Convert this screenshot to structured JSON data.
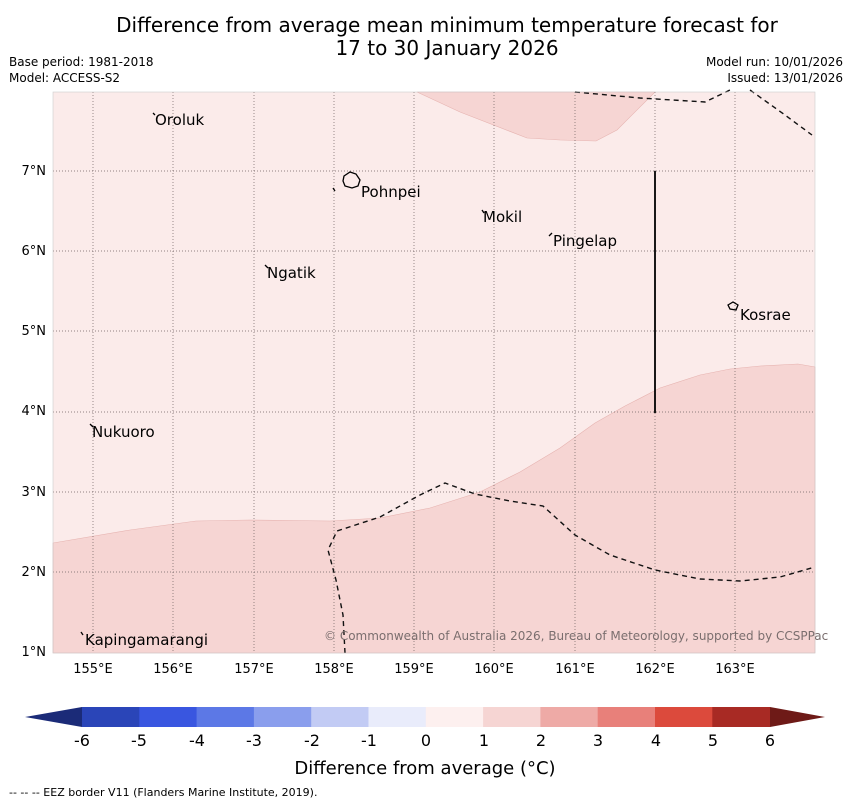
{
  "title": "Difference from average mean minimum temperature forecast for\n17 to 30 January 2026",
  "base_period": "Base period: 1981-2018",
  "model": "Model: ACCESS-S2",
  "model_run": "Model run: 10/01/2026",
  "issued": "Issued: 13/01/2026",
  "lat_ticks": [
    "7°N",
    "6°N",
    "5°N",
    "4°N",
    "3°N",
    "2°N",
    "1°N"
  ],
  "lon_ticks": [
    "155°E",
    "156°E",
    "157°E",
    "158°E",
    "159°E",
    "160°E",
    "161°E",
    "162°E",
    "163°E"
  ],
  "places": [
    "Oroluk",
    "Pohnpei",
    "Mokil",
    "Pingelap",
    "Ngatik",
    "Kosrae",
    "Nukuoro",
    "Kapingamarangi"
  ],
  "copyright": "© Commonwealth of Australia 2026, Bureau of Meteorology, supported by CCSPPac",
  "colorbar": {
    "ticks": [
      "-6",
      "-5",
      "-4",
      "-3",
      "-2",
      "-1",
      "0",
      "1",
      "2",
      "3",
      "4",
      "5",
      "6"
    ],
    "label": "Difference from average (°C)",
    "colors": [
      "#1b2b78",
      "#2a45b8",
      "#3956e0",
      "#5c78e6",
      "#8a9eed",
      "#c2cbf4",
      "#e9ecfb",
      "#fdf0ef",
      "#f6d5d3",
      "#eeaaa6",
      "#e8807a",
      "#dc4a3c",
      "#a82a24",
      "#6e1a17"
    ]
  },
  "map_fill": {
    "low": "#fbebea",
    "high": "#f6d5d3"
  },
  "eez_note": "--  --  -- EEZ border V11 (Flanders Marine Institute, 2019)."
}
